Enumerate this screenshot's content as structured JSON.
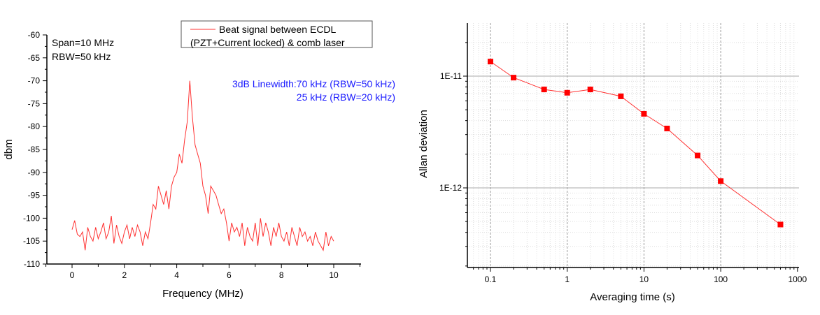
{
  "chart_data": [
    {
      "type": "line",
      "xlabel": "Frequency (MHz)",
      "ylabel": "dbm",
      "xlim": [
        -1,
        11
      ],
      "ylim": [
        -110,
        -60
      ],
      "xticks": [
        0,
        2,
        4,
        6,
        8,
        10
      ],
      "yticks": [
        -60,
        -65,
        -70,
        -75,
        -80,
        -85,
        -90,
        -95,
        -100,
        -105,
        -110
      ],
      "grid": false,
      "legend": {
        "placement": "top-right",
        "line1": "Beat signal between ECDL",
        "line2": "(PZT+Current locked) & comb laser"
      },
      "annotations": {
        "span": "Span=10 MHz",
        "rbw": "RBW=50 kHz",
        "linewidth1": "3dB Linewidth:70 kHz (RBW=50 kHz)",
        "linewidth2": "25 kHz (RBW=20 kHz)"
      },
      "series": [
        {
          "name": "Beat signal between ECDL (PZT+Current locked) & comb laser",
          "color": "#ff3030",
          "x_start": 0,
          "x_step": 0.1,
          "y": [
            -102.5,
            -100.5,
            -103.5,
            -104,
            -103,
            -107,
            -102,
            -104,
            -105,
            -102,
            -104.5,
            -103,
            -101,
            -104.5,
            -103,
            -99.5,
            -105.5,
            -101.5,
            -104,
            -105.5,
            -103,
            -101.5,
            -104.5,
            -102,
            -104,
            -101.5,
            -103,
            -106,
            -103,
            -104.5,
            -101,
            -97,
            -98,
            -93,
            -95,
            -97,
            -94,
            -98,
            -93,
            -91,
            -90,
            -86,
            -88,
            -83,
            -79,
            -70,
            -78,
            -84,
            -86,
            -88,
            -93,
            -95,
            -99,
            -93,
            -94,
            -95,
            -97,
            -99,
            -98,
            -101,
            -105,
            -101,
            -103,
            -102,
            -104,
            -101,
            -106,
            -102,
            -104,
            -105,
            -101,
            -106,
            -100,
            -104,
            -101,
            -103,
            -106,
            -102,
            -104,
            -101,
            -104,
            -105,
            -103,
            -106,
            -102,
            -104,
            -106,
            -102,
            -104,
            -103,
            -105,
            -104,
            -106,
            -103,
            -105,
            -106,
            -107,
            -103,
            -106,
            -104,
            -105
          ]
        }
      ]
    },
    {
      "type": "line",
      "xscale": "log",
      "yscale": "log",
      "xlabel": "Averaging time (s)",
      "ylabel": "Allan deviation",
      "xlim": [
        0.05,
        1000
      ],
      "ylim": [
        2e-13,
        3e-11
      ],
      "xticks": [
        {
          "v": 0.1,
          "label": "0.1"
        },
        {
          "v": 1,
          "label": "1"
        },
        {
          "v": 10,
          "label": "10"
        },
        {
          "v": 100,
          "label": "100"
        },
        {
          "v": 1000,
          "label": "1000"
        }
      ],
      "yticks": [
        {
          "v": 1e-11,
          "label": "1E-11"
        },
        {
          "v": 1e-12,
          "label": "1E-12"
        }
      ],
      "grid": true,
      "series": [
        {
          "name": "Allan deviation",
          "color": "#ff0000",
          "marker": "square",
          "x": [
            0.1,
            0.2,
            0.5,
            1,
            2,
            5,
            10,
            20,
            50,
            100,
            600
          ],
          "y": [
            1.35e-11,
            9.7e-12,
            7.6e-12,
            7.1e-12,
            7.6e-12,
            6.6e-12,
            4.6e-12,
            3.4e-12,
            1.95e-12,
            1.15e-12,
            4.7e-13
          ]
        }
      ]
    }
  ]
}
